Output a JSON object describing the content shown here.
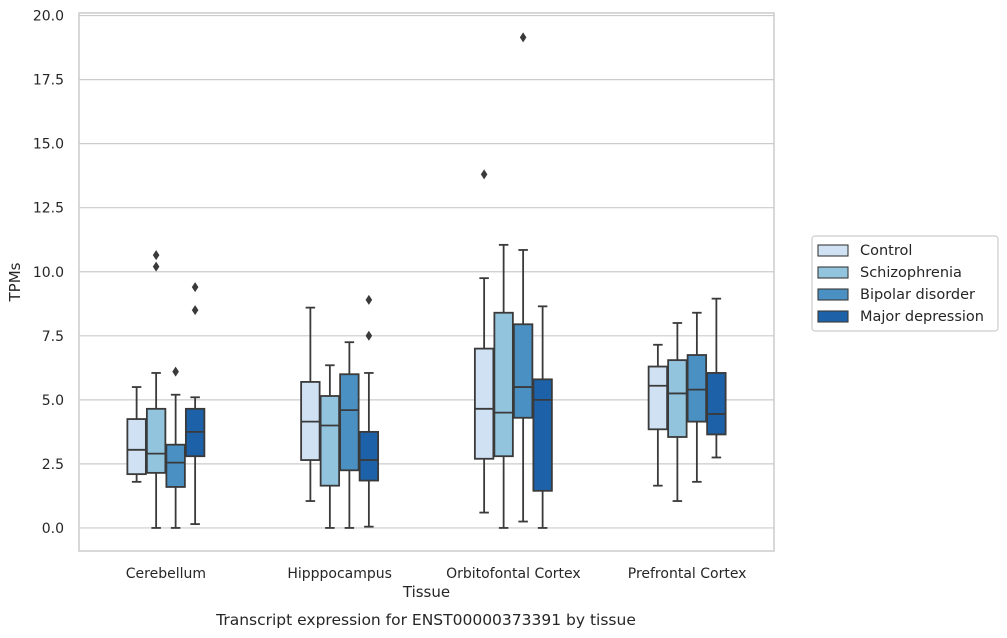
{
  "chart_data": {
    "type": "box",
    "xlabel": "Tissue",
    "ylabel": "TPMs",
    "caption": "Transcript expression for ENST00000373391 by tissue",
    "ylim": [
      -0.9,
      20.1
    ],
    "yticks": [
      "0.0",
      "2.5",
      "5.0",
      "7.5",
      "10.0",
      "12.5",
      "15.0",
      "17.5",
      "20.0"
    ],
    "grid": "horizontal",
    "legend_placement": "right",
    "categories": [
      "Cerebellum",
      "Hipppocampus",
      "Orbitofontal Cortex",
      "Prefrontal Cortex"
    ],
    "series": [
      {
        "name": "Control",
        "color": "#cfe1f2",
        "boxes": [
          {
            "whislo": 1.8,
            "q1": 2.1,
            "med": 3.05,
            "q3": 4.25,
            "whishi": 5.5,
            "fliers": []
          },
          {
            "whislo": 1.05,
            "q1": 2.65,
            "med": 4.15,
            "q3": 5.7,
            "whishi": 8.6,
            "fliers": []
          },
          {
            "whislo": 0.6,
            "q1": 2.7,
            "med": 4.65,
            "q3": 7.0,
            "whishi": 9.75,
            "fliers": [
              13.8
            ]
          },
          {
            "whislo": 1.65,
            "q1": 3.85,
            "med": 5.55,
            "q3": 6.3,
            "whishi": 7.15,
            "fliers": []
          }
        ]
      },
      {
        "name": "Schizophrenia",
        "color": "#93c4de",
        "boxes": [
          {
            "whislo": 0.0,
            "q1": 2.15,
            "med": 2.9,
            "q3": 4.65,
            "whishi": 6.05,
            "fliers": [
              10.2,
              10.65
            ]
          },
          {
            "whislo": 0.0,
            "q1": 1.65,
            "med": 4.0,
            "q3": 5.15,
            "whishi": 6.35,
            "fliers": []
          },
          {
            "whislo": 0.0,
            "q1": 2.8,
            "med": 4.5,
            "q3": 8.4,
            "whishi": 11.05,
            "fliers": []
          },
          {
            "whislo": 1.05,
            "q1": 3.55,
            "med": 5.25,
            "q3": 6.55,
            "whishi": 8.0,
            "fliers": []
          }
        ]
      },
      {
        "name": "Bipolar disorder",
        "color": "#4a90c2",
        "boxes": [
          {
            "whislo": 0.0,
            "q1": 1.6,
            "med": 2.55,
            "q3": 3.25,
            "whishi": 5.2,
            "fliers": [
              6.1
            ]
          },
          {
            "whislo": 0.0,
            "q1": 2.25,
            "med": 4.6,
            "q3": 6.0,
            "whishi": 7.25,
            "fliers": []
          },
          {
            "whislo": 0.25,
            "q1": 4.3,
            "med": 5.5,
            "q3": 7.95,
            "whishi": 10.85,
            "fliers": [
              19.15
            ]
          },
          {
            "whislo": 1.8,
            "q1": 4.15,
            "med": 5.4,
            "q3": 6.75,
            "whishi": 8.4,
            "fliers": []
          }
        ]
      },
      {
        "name": "Major depression",
        "color": "#1d62a8",
        "boxes": [
          {
            "whislo": 0.15,
            "q1": 2.8,
            "med": 3.75,
            "q3": 4.65,
            "whishi": 5.1,
            "fliers": [
              8.5,
              9.4
            ]
          },
          {
            "whislo": 0.05,
            "q1": 1.85,
            "med": 2.65,
            "q3": 3.75,
            "whishi": 6.05,
            "fliers": [
              7.5,
              8.9
            ]
          },
          {
            "whislo": 0.0,
            "q1": 1.45,
            "med": 5.0,
            "q3": 5.8,
            "whishi": 8.65,
            "fliers": []
          },
          {
            "whislo": 2.75,
            "q1": 3.65,
            "med": 4.45,
            "q3": 6.05,
            "whishi": 8.95,
            "fliers": []
          }
        ]
      }
    ]
  }
}
